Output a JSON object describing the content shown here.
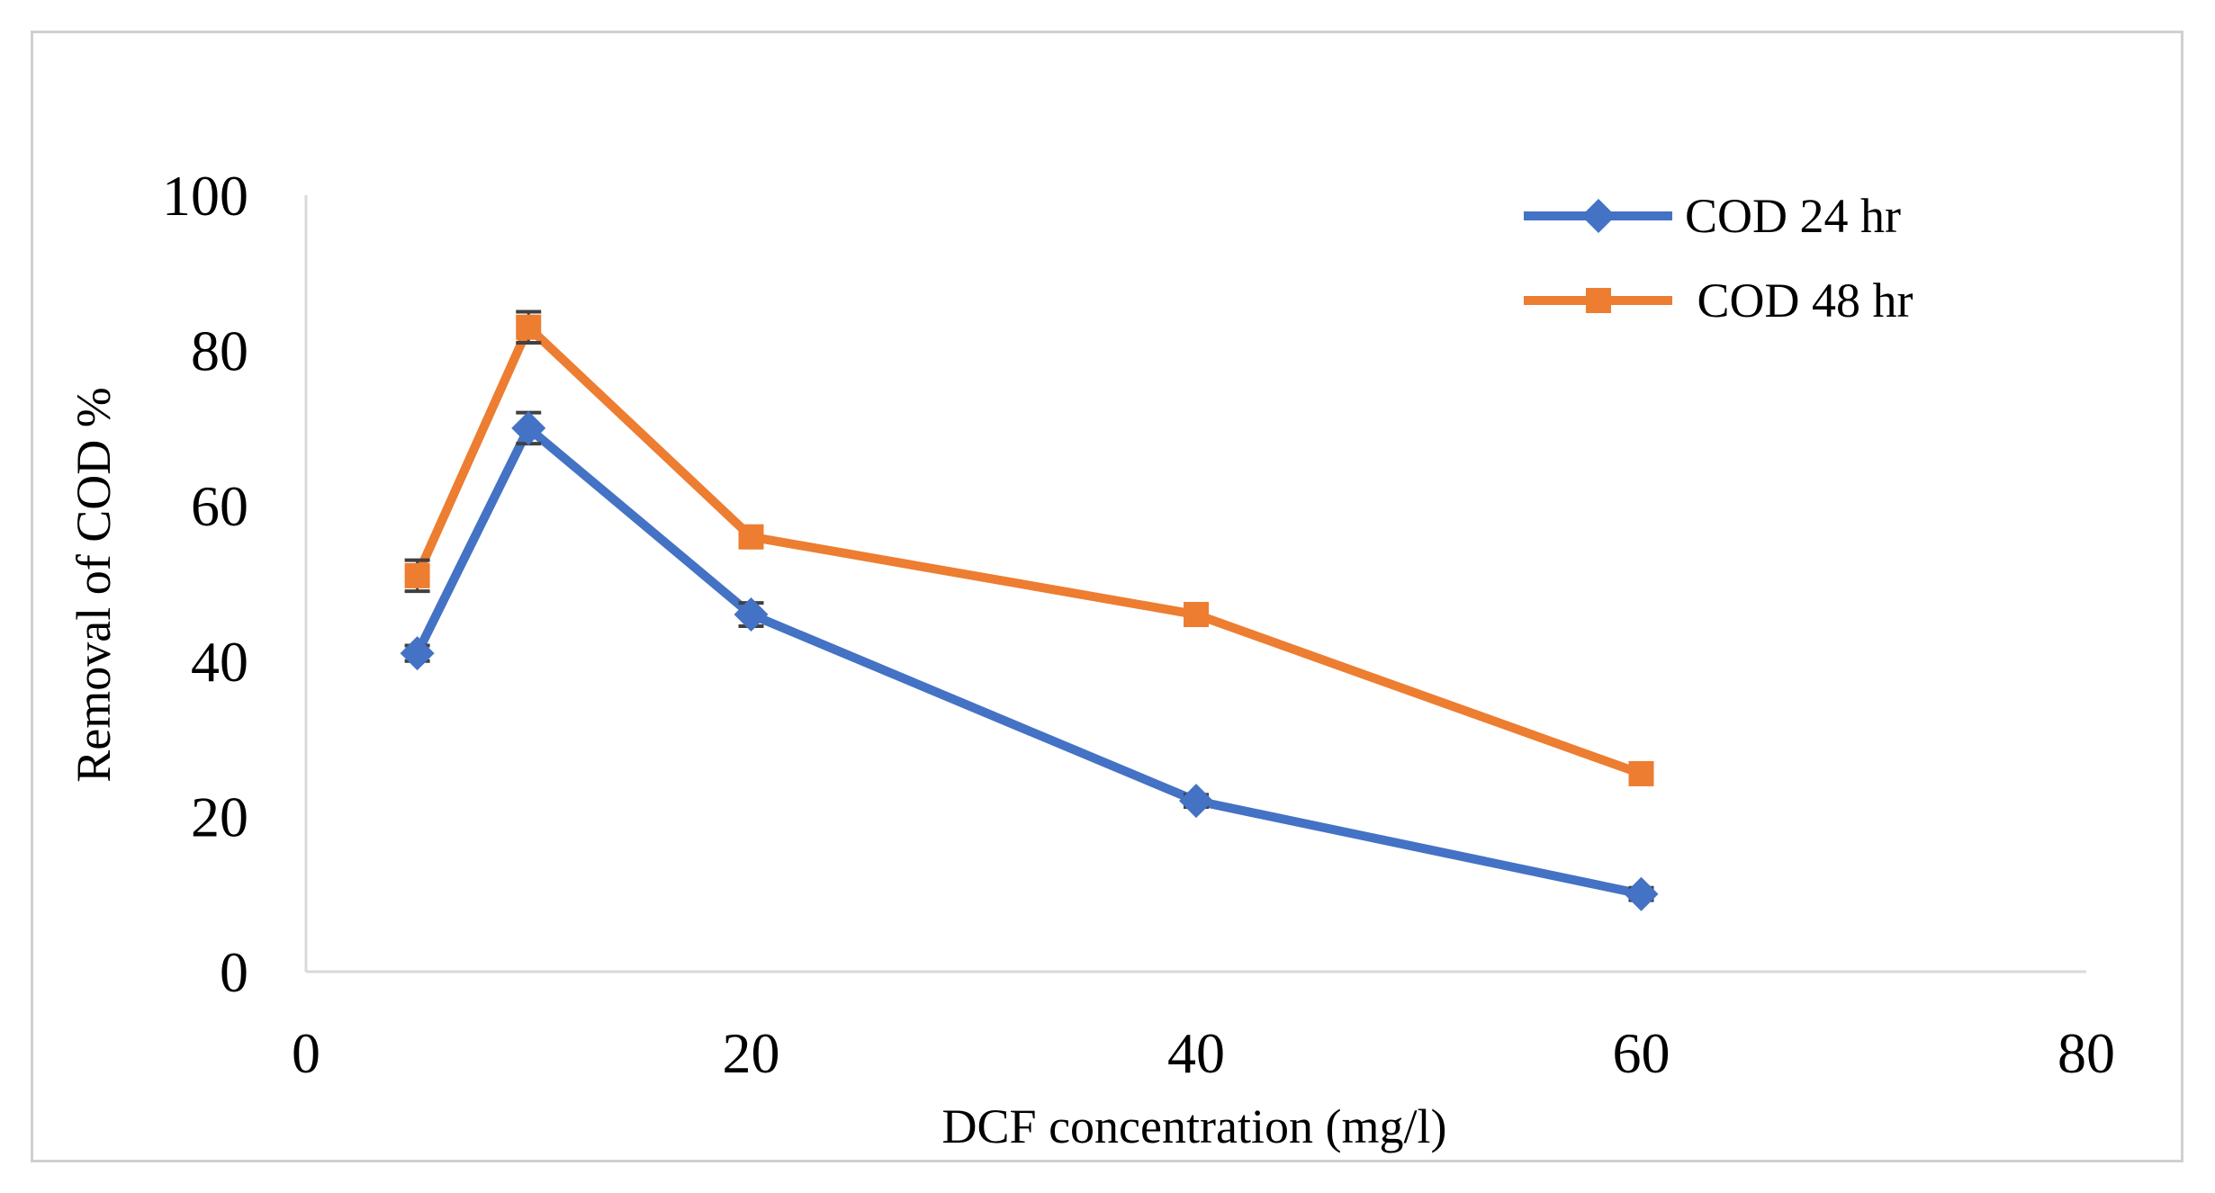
{
  "chart_data": {
    "type": "line",
    "title": "",
    "xlabel": "DCF concentration (mg/l)",
    "ylabel": "Removal of COD %",
    "xlim": [
      0,
      80
    ],
    "ylim": [
      0,
      100
    ],
    "xticks": [
      0,
      20,
      40,
      60,
      80
    ],
    "yticks": [
      0,
      20,
      40,
      60,
      80,
      100
    ],
    "grid": false,
    "legend_position": "top-right",
    "series": [
      {
        "name": "COD 24 hr",
        "color": "#4472C4",
        "marker": "diamond",
        "x": [
          5,
          10,
          20,
          40,
          60
        ],
        "y": [
          41,
          70,
          46,
          22,
          10
        ],
        "error": [
          1,
          2,
          1.5,
          0.8,
          0.8
        ]
      },
      {
        "name": " COD 48 hr",
        "color": "#ED7D31",
        "marker": "square",
        "x": [
          5,
          10,
          20,
          40,
          60
        ],
        "y": [
          51,
          83,
          56,
          46,
          25.5
        ],
        "error": [
          2,
          2,
          1,
          1,
          1
        ]
      }
    ]
  }
}
